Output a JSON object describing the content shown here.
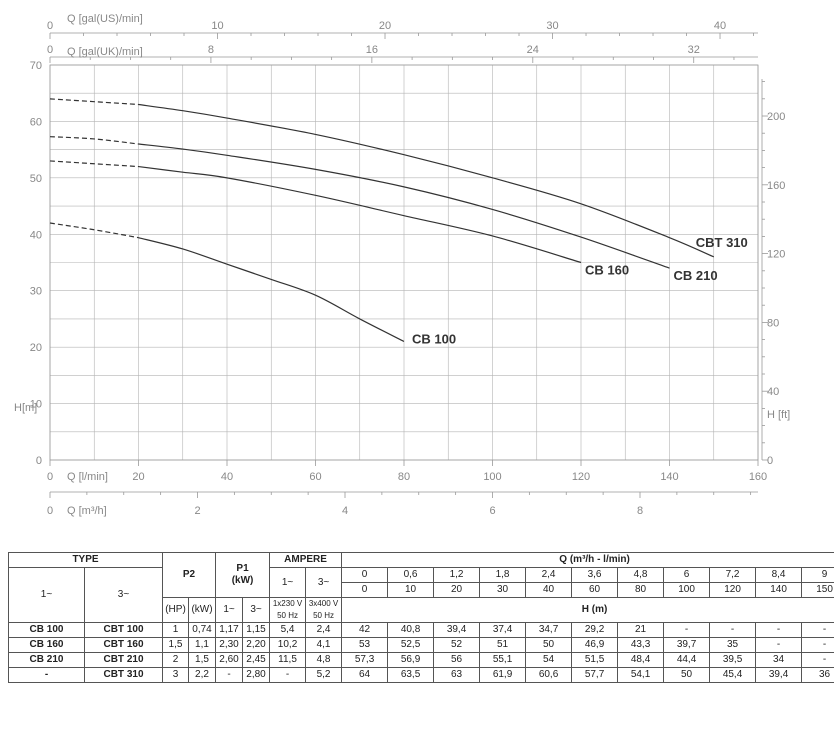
{
  "chart_data": {
    "type": "line",
    "top_axes": [
      {
        "label": "Q [gal(US)/min]",
        "ticks": [
          "0",
          "10",
          "20",
          "30",
          "40"
        ],
        "values": [
          0,
          10,
          20,
          30,
          40
        ]
      },
      {
        "label": "Q [gal(UK)/min]",
        "ticks": [
          "0",
          "8",
          "16",
          "24",
          "32"
        ],
        "values": [
          0,
          8,
          16,
          24,
          32
        ]
      }
    ],
    "bottom_axes": [
      {
        "label": "Q [l/min]",
        "ticks": [
          "0",
          "20",
          "40",
          "60",
          "80",
          "100",
          "120",
          "140",
          "160"
        ],
        "values": [
          0,
          20,
          40,
          60,
          80,
          100,
          120,
          140,
          160
        ]
      },
      {
        "label": "Q [m³/h]",
        "ticks": [
          "0",
          "2",
          "4",
          "6",
          "8"
        ],
        "values": [
          0,
          2,
          4,
          6,
          8
        ]
      }
    ],
    "ylabel": "H[m]",
    "ylim": [
      0,
      70
    ],
    "y_ticks": [
      "0",
      "10",
      "20",
      "30",
      "40",
      "50",
      "60",
      "70"
    ],
    "y2label": "H [ft]",
    "y2_ticks": [
      "0",
      "40",
      "80",
      "120",
      "160",
      "200"
    ],
    "xlim": [
      0,
      160
    ],
    "grid": true,
    "series": [
      {
        "name": "CB 100",
        "x": [
          0,
          10,
          20,
          30,
          40,
          50,
          60,
          70,
          80
        ],
        "y": [
          42,
          40.8,
          39.4,
          37.4,
          34.7,
          32,
          29.2,
          25,
          21
        ],
        "dashed_until": 20
      },
      {
        "name": "CB 160",
        "x": [
          0,
          10,
          20,
          30,
          40,
          60,
          80,
          100,
          120
        ],
        "y": [
          53,
          52.5,
          52,
          51,
          50,
          46.9,
          43.3,
          39.7,
          35
        ],
        "dashed_until": 20
      },
      {
        "name": "CB 210",
        "x": [
          0,
          10,
          20,
          30,
          40,
          60,
          80,
          100,
          120,
          140
        ],
        "y": [
          57.3,
          56.9,
          56,
          55.1,
          54,
          51.5,
          48.4,
          44.4,
          39.5,
          34
        ],
        "dashed_until": 20
      },
      {
        "name": "CBT 310",
        "x": [
          0,
          10,
          20,
          30,
          40,
          60,
          80,
          100,
          120,
          140,
          150
        ],
        "y": [
          64,
          63.5,
          63,
          61.9,
          60.6,
          57.7,
          54.1,
          50,
          45.4,
          39.4,
          36
        ],
        "dashed_until": 20
      }
    ],
    "colors": {
      "grid": "#b4b4b4",
      "curve": "#333333",
      "axis_text": "#888888"
    }
  },
  "table": {
    "type_header": "TYPE",
    "single_phase": "1~",
    "three_phase": "3~",
    "p2": "P2",
    "p1": "P1",
    "p1_unit": "(kW)",
    "ampere": "AMPERE",
    "amp_single_rating": "1x230 V 50 Hz",
    "amp_three_rating": "3x400 V 50 Hz",
    "q_header": "Q (m³/h - l/min)",
    "q_m3h": [
      "0",
      "0,6",
      "1,2",
      "1,8",
      "2,4",
      "3,6",
      "4,8",
      "6",
      "7,2",
      "8,4",
      "9"
    ],
    "q_lmin": [
      "0",
      "10",
      "20",
      "30",
      "40",
      "60",
      "80",
      "100",
      "120",
      "140",
      "150"
    ],
    "h_label": "H (m)",
    "hp": "(HP)",
    "kw": "(kW)",
    "rows": [
      {
        "t1": "CB 100",
        "t3": "CBT 100",
        "hp": "1",
        "kw": "0,74",
        "p1_1": "1,17",
        "p1_3": "1,15",
        "a1": "5,4",
        "a3": "2,4",
        "h": [
          "42",
          "40,8",
          "39,4",
          "37,4",
          "34,7",
          "29,2",
          "21",
          "-",
          "-",
          "-",
          "-"
        ]
      },
      {
        "t1": "CB 160",
        "t3": "CBT 160",
        "hp": "1,5",
        "kw": "1,1",
        "p1_1": "2,30",
        "p1_3": "2,20",
        "a1": "10,2",
        "a3": "4,1",
        "h": [
          "53",
          "52,5",
          "52",
          "51",
          "50",
          "46,9",
          "43,3",
          "39,7",
          "35",
          "-",
          "-"
        ]
      },
      {
        "t1": "CB 210",
        "t3": "CBT 210",
        "hp": "2",
        "kw": "1,5",
        "p1_1": "2,60",
        "p1_3": "2,45",
        "a1": "11,5",
        "a3": "4,8",
        "h": [
          "57,3",
          "56,9",
          "56",
          "55,1",
          "54",
          "51,5",
          "48,4",
          "44,4",
          "39,5",
          "34",
          "-"
        ]
      },
      {
        "t1": "-",
        "t3": "CBT 310",
        "hp": "3",
        "kw": "2,2",
        "p1_1": "-",
        "p1_3": "2,80",
        "a1": "-",
        "a3": "5,2",
        "h": [
          "64",
          "63,5",
          "63",
          "61,9",
          "60,6",
          "57,7",
          "54,1",
          "50",
          "45,4",
          "39,4",
          "36"
        ]
      }
    ]
  }
}
